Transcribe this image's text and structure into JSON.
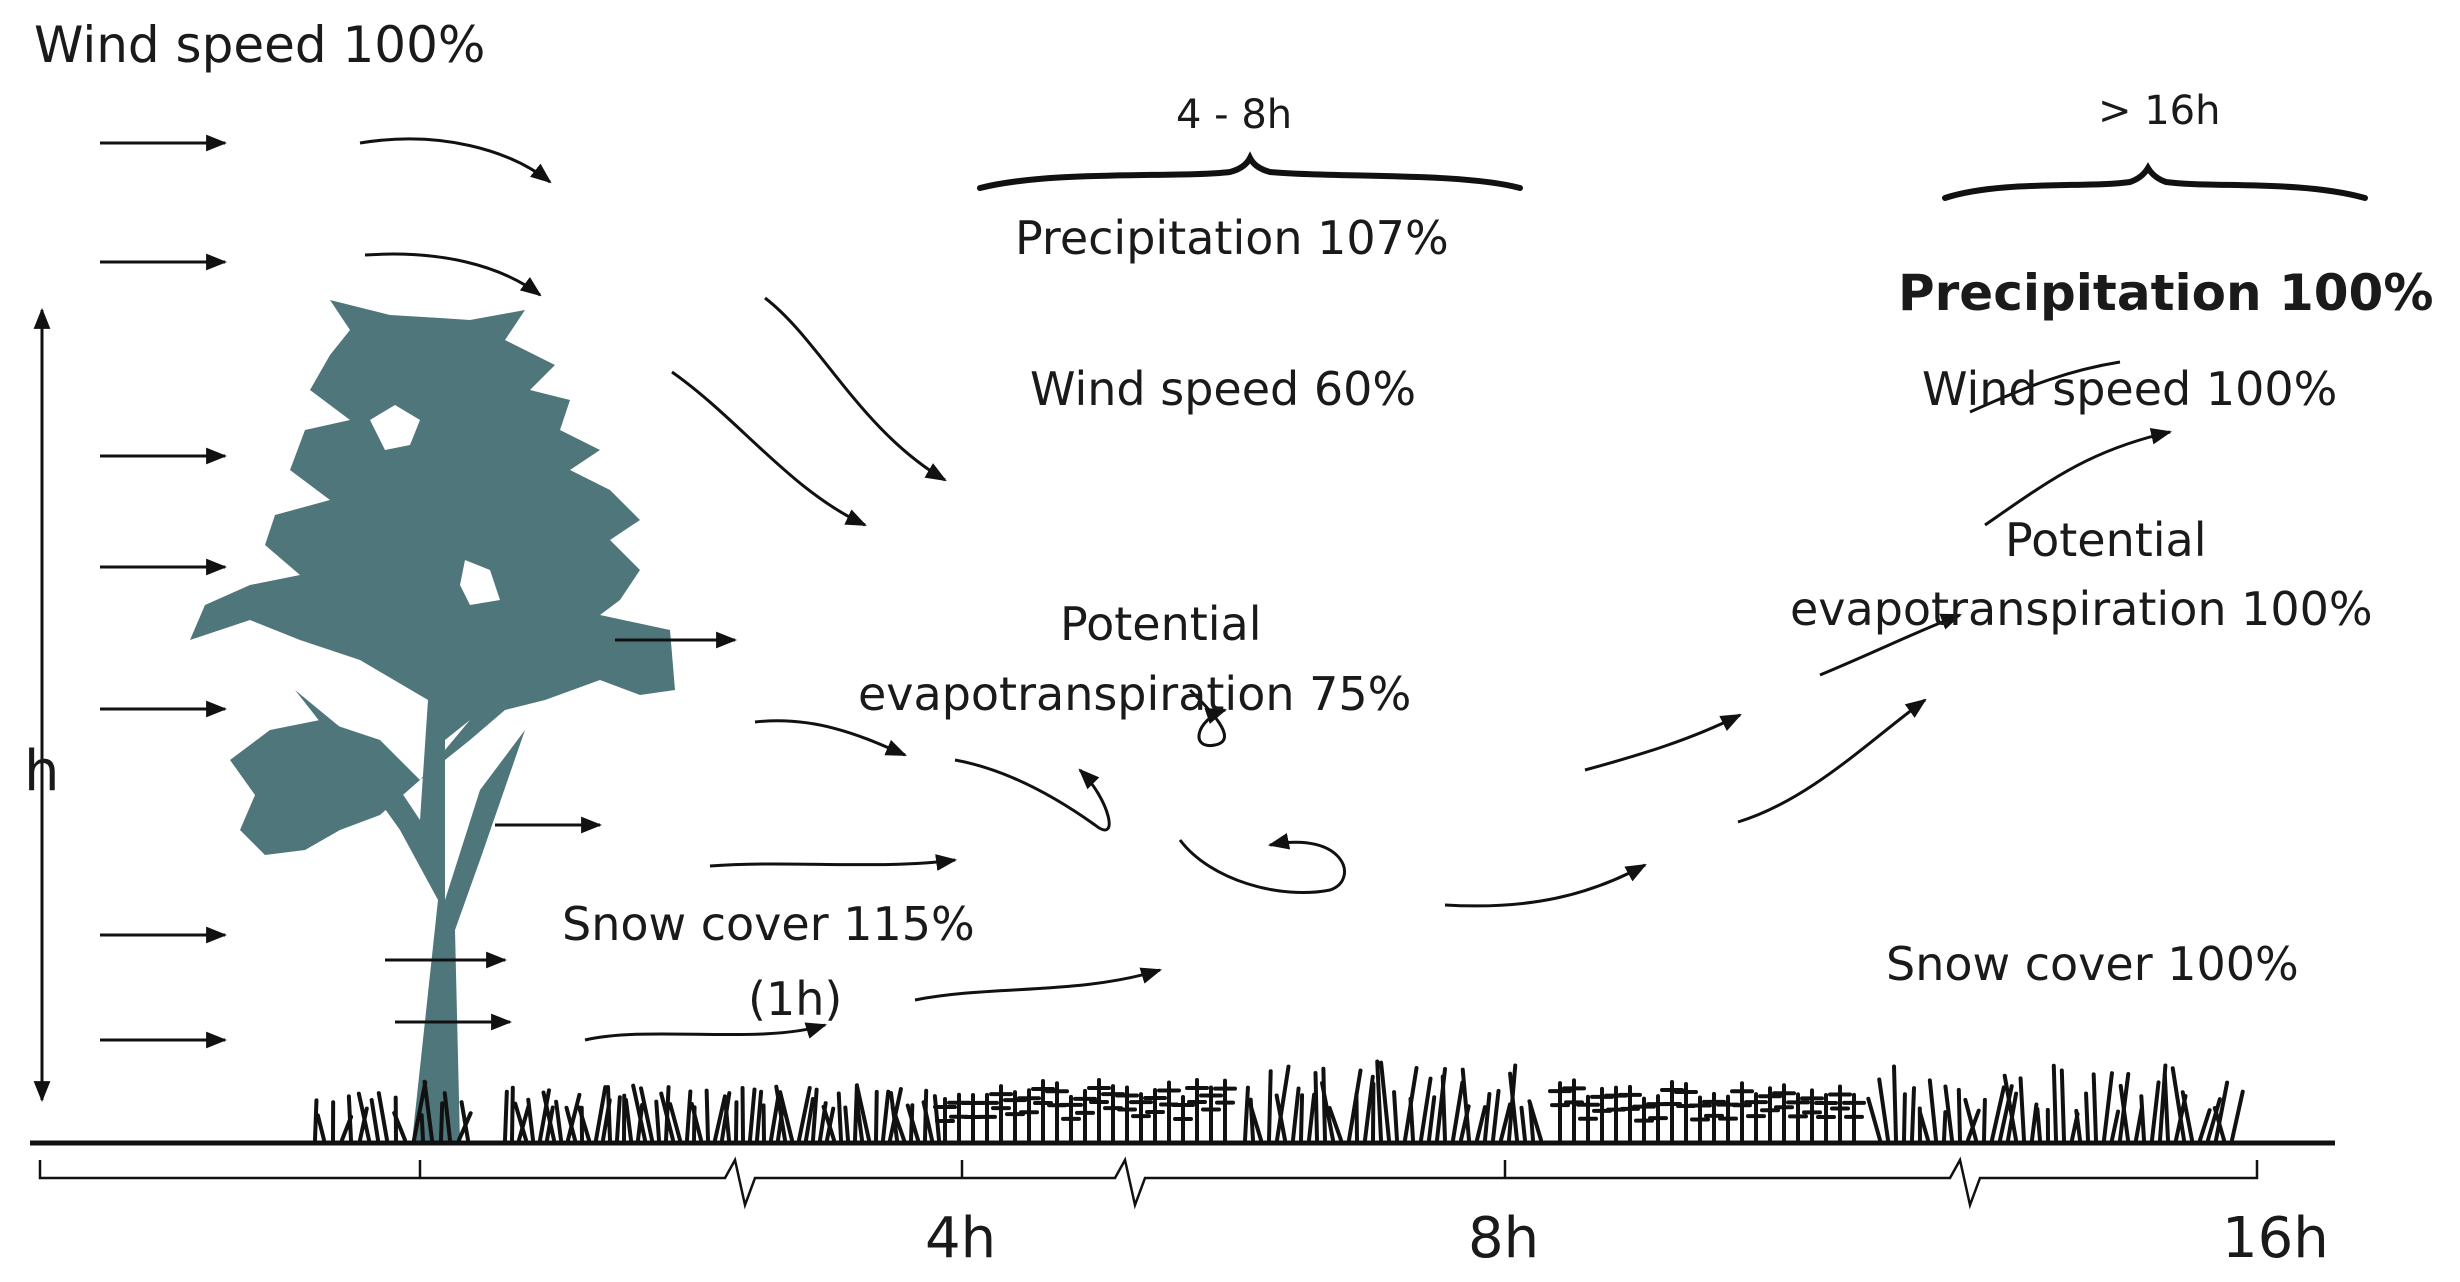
{
  "labels": {
    "wind_speed_left": "Wind speed 100%",
    "height": "h",
    "snow_cover_near": "Snow cover  115%",
    "snow_cover_near_time": "(1h)",
    "interval_mid": "4 - 8h",
    "precipitation_mid": "Precipitation 107%",
    "wind_speed_mid": "Wind speed 60%",
    "pet_mid_line1": "Potential",
    "pet_mid_line2": "evapotranspiration 75%",
    "interval_far": "> 16h",
    "precipitation_far": "Precipitation 100%",
    "wind_speed_far": "Wind speed 100%",
    "pet_far_line1": "Potential",
    "pet_far_line2": "evapotranspiration 100%",
    "snow_cover_far": "Snow cover  100%"
  },
  "axis": {
    "ticks": [
      "4h",
      "8h",
      "16h"
    ]
  },
  "colors": {
    "tree": "#4f767b",
    "ink": "#111111",
    "background": "#ffffff"
  }
}
